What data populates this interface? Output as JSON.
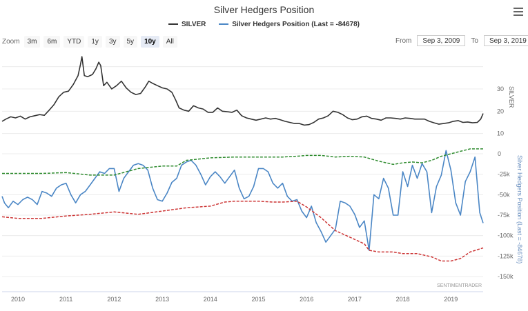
{
  "title": "Silver Hedgers Position",
  "legend": [
    {
      "name": "SILVER",
      "color": "#333333"
    },
    {
      "name": "Silver Hedgers Position (Last = -84678)",
      "color": "#4a86c5"
    }
  ],
  "zoom": {
    "label": "Zoom",
    "buttons": [
      "3m",
      "6m",
      "YTD",
      "1y",
      "3y",
      "5y",
      "10y",
      "All"
    ],
    "active": "10y"
  },
  "range": {
    "from_label": "From",
    "from_value": "Sep 3, 2009",
    "to_label": "To",
    "to_value": "Sep 3, 2019"
  },
  "credit": "SENTIMENTRADER",
  "chart_data": {
    "type": "line",
    "title": "Silver Hedgers Position",
    "x_ticks": [
      "2010",
      "2011",
      "2012",
      "2013",
      "2014",
      "2015",
      "2016",
      "2017",
      "2018",
      "2019"
    ],
    "x_range": [
      2009.67,
      2019.67
    ],
    "y_axes": [
      {
        "title": "SILVER",
        "ticks": [
          "30",
          "20",
          "10"
        ],
        "range": [
          0,
          45
        ]
      },
      {
        "title": "Silver Hedgers Position (Last = -84678)",
        "ticks": [
          "0",
          "-25k",
          "-50k",
          "-75k",
          "-100k",
          "-125k",
          "-150k"
        ],
        "range": [
          -150000,
          0
        ]
      }
    ],
    "series": [
      {
        "name": "SILVER",
        "axis": 0,
        "color": "#333333",
        "style": "solid",
        "x": [
          2009.67,
          2009.75,
          2009.85,
          2009.95,
          2010.05,
          2010.15,
          2010.25,
          2010.35,
          2010.45,
          2010.55,
          2010.65,
          2010.75,
          2010.85,
          2010.95,
          2011.05,
          2011.15,
          2011.25,
          2011.3,
          2011.33,
          2011.38,
          2011.45,
          2011.55,
          2011.62,
          2011.68,
          2011.72,
          2011.78,
          2011.85,
          2011.95,
          2012.05,
          2012.15,
          2012.25,
          2012.35,
          2012.45,
          2012.55,
          2012.65,
          2012.72,
          2012.8,
          2012.9,
          2013.0,
          2013.1,
          2013.2,
          2013.28,
          2013.35,
          2013.45,
          2013.55,
          2013.65,
          2013.75,
          2013.85,
          2013.95,
          2014.05,
          2014.15,
          2014.25,
          2014.35,
          2014.45,
          2014.55,
          2014.65,
          2014.75,
          2014.85,
          2014.95,
          2015.05,
          2015.15,
          2015.25,
          2015.35,
          2015.45,
          2015.55,
          2015.65,
          2015.75,
          2015.85,
          2015.95,
          2016.05,
          2016.15,
          2016.25,
          2016.35,
          2016.45,
          2016.55,
          2016.65,
          2016.75,
          2016.85,
          2016.95,
          2017.05,
          2017.15,
          2017.25,
          2017.35,
          2017.45,
          2017.55,
          2017.65,
          2017.75,
          2017.85,
          2017.95,
          2018.05,
          2018.15,
          2018.25,
          2018.35,
          2018.45,
          2018.55,
          2018.65,
          2018.75,
          2018.85,
          2018.95,
          2019.05,
          2019.15,
          2019.25,
          2019.35,
          2019.45,
          2019.55,
          2019.62,
          2019.67
        ],
        "values": [
          15.5,
          16.5,
          17.5,
          17.0,
          17.8,
          16.5,
          17.5,
          18.0,
          18.5,
          18.2,
          20.5,
          23.0,
          26.5,
          28.5,
          29.0,
          32.0,
          36.0,
          41.0,
          44.5,
          36.0,
          35.5,
          36.5,
          39.0,
          42.0,
          40.5,
          31.5,
          33.0,
          30.0,
          31.5,
          33.5,
          30.5,
          28.5,
          27.5,
          28.0,
          31.0,
          33.5,
          32.5,
          31.5,
          30.5,
          30.0,
          28.5,
          25.0,
          21.5,
          20.5,
          20.0,
          22.5,
          21.5,
          21.0,
          19.5,
          19.5,
          21.5,
          20.0,
          19.8,
          19.5,
          20.5,
          18.0,
          17.0,
          16.5,
          16.0,
          16.5,
          17.0,
          16.5,
          16.8,
          16.2,
          15.5,
          15.0,
          14.5,
          14.5,
          13.8,
          14.0,
          15.0,
          16.5,
          17.0,
          18.0,
          20.0,
          19.5,
          18.5,
          17.0,
          16.2,
          16.5,
          17.5,
          17.8,
          16.8,
          16.5,
          16.0,
          17.0,
          17.0,
          16.8,
          16.5,
          17.0,
          16.8,
          16.5,
          16.5,
          16.5,
          15.5,
          14.8,
          14.2,
          14.5,
          14.8,
          15.5,
          15.8,
          15.0,
          15.2,
          14.8,
          15.0,
          16.5,
          19.0
        ]
      },
      {
        "name": "Silver Hedgers Position",
        "axis": 1,
        "color": "#4a86c5",
        "style": "solid",
        "last": -84678,
        "x": [
          2009.67,
          2009.72,
          2009.8,
          2009.9,
          2010.0,
          2010.1,
          2010.2,
          2010.3,
          2010.4,
          2010.5,
          2010.6,
          2010.7,
          2010.8,
          2010.9,
          2011.0,
          2011.1,
          2011.2,
          2011.3,
          2011.4,
          2011.5,
          2011.6,
          2011.7,
          2011.8,
          2011.9,
          2012.0,
          2012.1,
          2012.2,
          2012.3,
          2012.4,
          2012.5,
          2012.6,
          2012.7,
          2012.8,
          2012.9,
          2013.0,
          2013.1,
          2013.2,
          2013.3,
          2013.4,
          2013.5,
          2013.6,
          2013.7,
          2013.8,
          2013.9,
          2014.0,
          2014.1,
          2014.2,
          2014.3,
          2014.4,
          2014.5,
          2014.6,
          2014.7,
          2014.8,
          2014.9,
          2015.0,
          2015.1,
          2015.2,
          2015.3,
          2015.4,
          2015.5,
          2015.6,
          2015.7,
          2015.8,
          2015.9,
          2016.0,
          2016.1,
          2016.2,
          2016.3,
          2016.4,
          2016.5,
          2016.6,
          2016.7,
          2016.8,
          2016.9,
          2017.0,
          2017.1,
          2017.2,
          2017.3,
          2017.4,
          2017.5,
          2017.6,
          2017.7,
          2017.8,
          2017.9,
          2018.0,
          2018.1,
          2018.2,
          2018.3,
          2018.4,
          2018.5,
          2018.6,
          2018.7,
          2018.8,
          2018.9,
          2019.0,
          2019.1,
          2019.2,
          2019.3,
          2019.4,
          2019.5,
          2019.6,
          2019.67
        ],
        "values": [
          -52000,
          -60000,
          -66000,
          -58000,
          -62000,
          -56000,
          -53000,
          -56000,
          -62000,
          -46000,
          -48000,
          -52000,
          -42000,
          -38000,
          -36000,
          -50000,
          -60000,
          -50000,
          -46000,
          -38000,
          -30000,
          -22000,
          -24000,
          -18000,
          -18000,
          -46000,
          -30000,
          -22000,
          -14000,
          -12000,
          -14000,
          -20000,
          -42000,
          -56000,
          -58000,
          -48000,
          -35000,
          -30000,
          -14000,
          -10000,
          -8000,
          -14000,
          -25000,
          -38000,
          -28000,
          -22000,
          -28000,
          -36000,
          -28000,
          -20000,
          -42000,
          -55000,
          -52000,
          -40000,
          -18000,
          -18000,
          -22000,
          -36000,
          -42000,
          -36000,
          -52000,
          -58000,
          -56000,
          -70000,
          -78000,
          -64000,
          -84000,
          -95000,
          -108000,
          -100000,
          -92000,
          -58000,
          -60000,
          -64000,
          -74000,
          -90000,
          -82000,
          -118000,
          -50000,
          -55000,
          -30000,
          -42000,
          -75000,
          -75000,
          -22000,
          -40000,
          -14000,
          -30000,
          -12000,
          -22000,
          -72000,
          -40000,
          -26000,
          4000,
          -20000,
          -60000,
          -75000,
          -34000,
          -22000,
          -4000,
          -72000,
          -84678
        ]
      },
      {
        "name": "Upper band",
        "axis": 1,
        "color": "#2e8b2e",
        "style": "dashed",
        "x": [
          2009.67,
          2010.0,
          2010.5,
          2011.0,
          2011.5,
          2012.0,
          2012.5,
          2013.0,
          2013.3,
          2013.5,
          2014.0,
          2014.5,
          2015.0,
          2015.5,
          2015.8,
          2016.0,
          2016.3,
          2016.6,
          2016.9,
          2017.2,
          2017.5,
          2017.8,
          2018.0,
          2018.2,
          2018.4,
          2018.6,
          2018.8,
          2019.0,
          2019.2,
          2019.4,
          2019.67
        ],
        "values": [
          -24000,
          -24000,
          -24000,
          -23000,
          -26000,
          -26000,
          -18000,
          -15000,
          -15000,
          -8000,
          -5000,
          -4000,
          -4000,
          -4000,
          -3000,
          -2000,
          -2000,
          -4000,
          -3000,
          -4000,
          -9000,
          -13000,
          -11000,
          -10000,
          -11000,
          -8000,
          -3000,
          0,
          3000,
          6000,
          6000
        ]
      },
      {
        "name": "Lower band",
        "axis": 1,
        "color": "#cc3333",
        "style": "dashed",
        "x": [
          2009.67,
          2010.0,
          2010.5,
          2011.0,
          2011.5,
          2012.0,
          2012.5,
          2013.0,
          2013.5,
          2014.0,
          2014.3,
          2014.5,
          2015.0,
          2015.3,
          2015.5,
          2015.8,
          2016.0,
          2016.3,
          2016.6,
          2016.9,
          2017.2,
          2017.3,
          2017.5,
          2017.8,
          2018.0,
          2018.3,
          2018.6,
          2018.8,
          2019.0,
          2019.2,
          2019.4,
          2019.67
        ],
        "values": [
          -77000,
          -79000,
          -79000,
          -76000,
          -74000,
          -71000,
          -74000,
          -70000,
          -66000,
          -64000,
          -59000,
          -58000,
          -58000,
          -59000,
          -59000,
          -58000,
          -65000,
          -78000,
          -94000,
          -102000,
          -110000,
          -118000,
          -120000,
          -120000,
          -122000,
          -122000,
          -126000,
          -131000,
          -131000,
          -128000,
          -120000,
          -115000
        ]
      }
    ]
  }
}
